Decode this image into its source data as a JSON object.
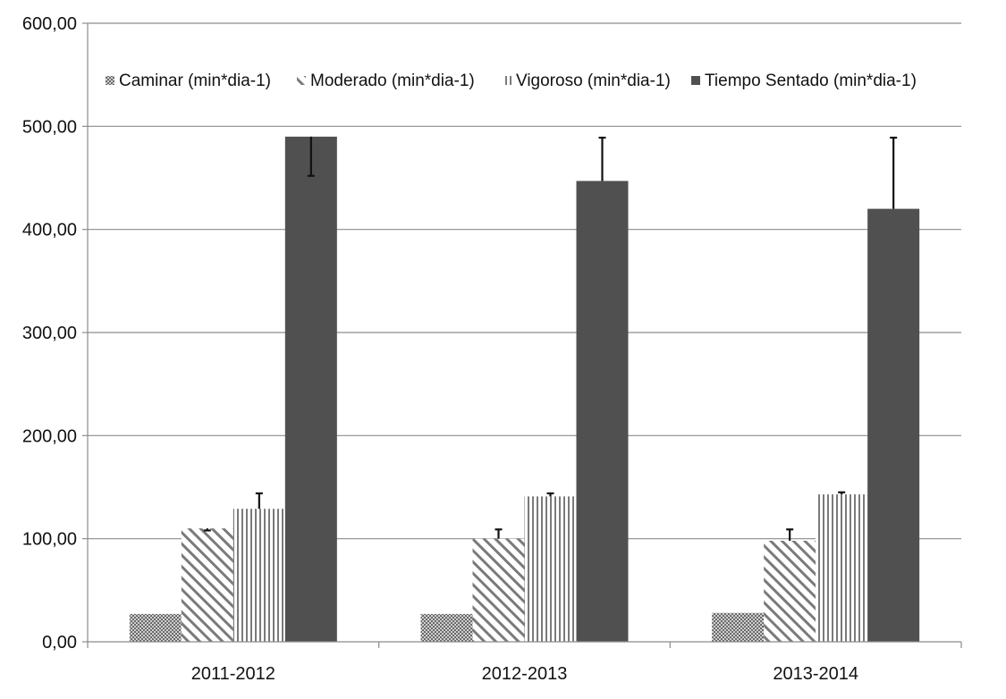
{
  "chart_data": {
    "type": "bar",
    "categories": [
      "2011-2012",
      "2012-2013",
      "2013-2014"
    ],
    "series": [
      {
        "name": "Caminar (min*dia-1)",
        "values": [
          27,
          27,
          28
        ],
        "error": [
          null,
          null,
          null
        ],
        "pattern": "crosshatch",
        "color": "#6e6e6e"
      },
      {
        "name": "Moderado (min*dia-1)",
        "values": [
          110,
          100,
          98
        ],
        "error": [
          108,
          109,
          109
        ],
        "pattern": "diagonal",
        "color": "#7a7a7a"
      },
      {
        "name": "Vigoroso (min*dia-1)",
        "values": [
          129,
          141,
          143
        ],
        "error": [
          144,
          144,
          145
        ],
        "pattern": "vertical",
        "color": "#7a7a7a"
      },
      {
        "name": "Tiempo Sentado (min*dia-1)",
        "values": [
          490,
          447,
          420
        ],
        "error": [
          452,
          489,
          489
        ],
        "pattern": "solid",
        "color": "#505050"
      }
    ],
    "ylim": [
      0,
      600
    ],
    "yticks": [
      0,
      100,
      200,
      300,
      400,
      500,
      600
    ],
    "ytick_labels": [
      "0,00",
      "100,00",
      "200,00",
      "300,00",
      "400,00",
      "500,00",
      "600,00"
    ],
    "grid": true,
    "legend_position": "top-center",
    "title": "",
    "xlabel": "",
    "ylabel": ""
  }
}
